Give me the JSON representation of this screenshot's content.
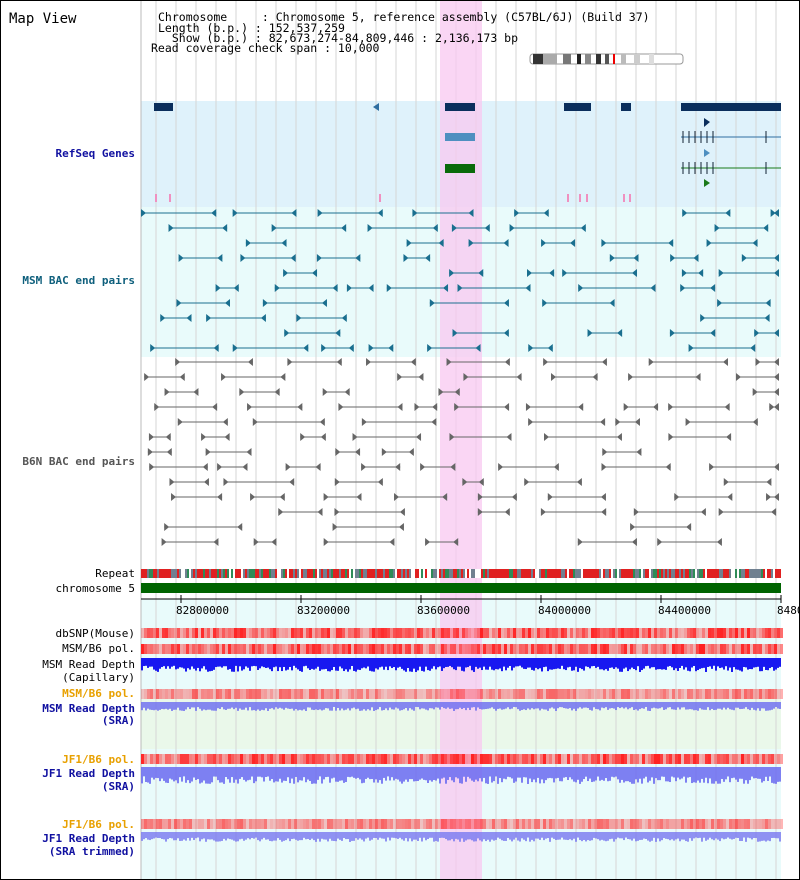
{
  "title": "Map View",
  "info": {
    "chromosome": "Chromosome     : Chromosome 5, reference assembly (C57BL/6J) (Build 37)",
    "length": "Length (b.p.) : 152,537,259",
    "show": "  Show (b.p.) : 82,673,274-84,809,446 : 2,136,173 bp",
    "coverage": "Read coverage check span : 10,000"
  },
  "tracks": {
    "refseq": "RefSeq Genes",
    "msm_bac": "MSM BAC end pairs",
    "b6n_bac": "B6N BAC end pairs",
    "repeat": "Repeat",
    "chromosome": "chromosome 5",
    "dbsnp": "dbSNP(Mouse)",
    "msm_b6_pol1": "MSM/B6 pol.",
    "msm_depth_cap1": "MSM Read Depth",
    "msm_depth_cap2": "(Capillary)",
    "msm_b6_pol2": "MSM/B6 pol.",
    "msm_depth_sra1": "MSM Read Depth",
    "msm_depth_sra2": "(SRA)",
    "jf1_b6_pol1": "JF1/B6 pol.",
    "jf1_depth_sra1": "JF1 Read Depth",
    "jf1_depth_sra2": "(SRA)",
    "jf1_b6_pol2": "JF1/B6 pol.",
    "jf1_depth_trim1": "JF1 Read Depth",
    "jf1_depth_trim2": "(SRA trimmed)"
  },
  "axis": {
    "ticks": [
      "82800000",
      "83200000",
      "83600000",
      "84000000",
      "84400000",
      "8480"
    ]
  },
  "colors": {
    "refseq_gene": "#0a2e5c",
    "msm_bac": "#1a6f8f",
    "b6n_bac": "#666666",
    "chromosome_bar": "#006400",
    "snp": "#ff2020",
    "depth": "#2020f0",
    "highlight": "#f8c8f0"
  }
}
